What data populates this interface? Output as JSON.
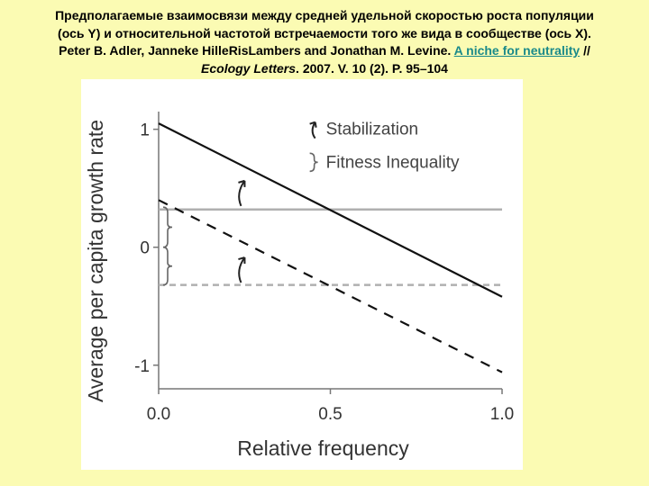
{
  "caption": {
    "line1": "Предполагаемые взаимосвязи между средней удельной скоростью роста популяции",
    "line2": "(ось Y) и относительной частотой встречаемости того же вида в сообществе (ось X).",
    "line3_prefix": "Peter B. Adler, Janneke HilleRisLambers and Jonathan M. Levine. ",
    "link_text": "A niche for neutrality",
    "line3_suffix": " //",
    "journal": "Ecology Letters",
    "citation_rest": ". 2007. V. 10 (2). P. 95–104"
  },
  "chart_data": {
    "type": "line",
    "xlabel": "Relative frequency",
    "ylabel": "Average per capita growth rate",
    "xlim": [
      0.0,
      1.0
    ],
    "ylim": [
      -1.2,
      1.15
    ],
    "x_ticks": [
      "0.0",
      "0.5",
      "1.0"
    ],
    "y_ticks": [
      "1",
      "0",
      "-1"
    ],
    "series": [
      {
        "style": "solid",
        "color": "#111111",
        "x": [
          0.0,
          1.0
        ],
        "y": [
          1.05,
          -0.42
        ]
      },
      {
        "style": "dashed",
        "color": "#111111",
        "x": [
          0.0,
          1.0
        ],
        "y": [
          0.4,
          -1.06
        ]
      },
      {
        "style": "solid",
        "color": "#b0b0b0",
        "x": [
          0.0,
          1.0
        ],
        "y": [
          0.32,
          0.32
        ]
      },
      {
        "style": "dashed",
        "color": "#b0b0b0",
        "x": [
          0.0,
          1.0
        ],
        "y": [
          -0.32,
          -0.32
        ]
      }
    ],
    "legend": [
      {
        "symbol": "curved-arrow",
        "label": "Stabilization"
      },
      {
        "symbol": "brace",
        "label": "Fitness Inequality"
      }
    ],
    "legend_position": "top-right",
    "grid": false
  }
}
